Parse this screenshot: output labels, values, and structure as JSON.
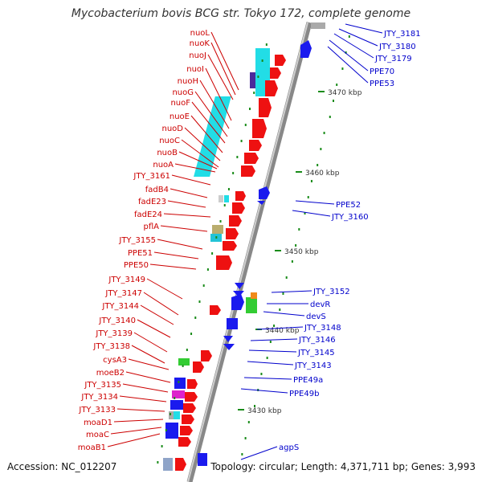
{
  "title": "Mycobacterium bovis BCG str. Tokyo 172, complete genome",
  "footer": {
    "accession": "Accession: NC_012207",
    "stats": "Topology: circular; Length: 4,371,711 bp; Genes: 3,993"
  },
  "colors": {
    "left_labels": "#cc0000",
    "right_labels": "#0000cc",
    "ticks": "#1a8c1a",
    "axis": "#8a8a8a",
    "red_gene": "#ee1111",
    "blue_gene": "#1a1aee",
    "cyan_gene": "#22dde6"
  },
  "scale_labels": [
    "3470 kbp",
    "3460 kbp",
    "3450 kbp",
    "3440 kbp",
    "3430 kbp"
  ],
  "left_genes": [
    "nuoL",
    "nuoK",
    "nuoJ",
    "nuoI",
    "nuoH",
    "nuoG",
    "nuoF",
    "nuoE",
    "nuoD",
    "nuoC",
    "nuoB",
    "nuoA",
    "JTY_3161",
    "fadB4",
    "fadE23",
    "fadE24",
    "pflA",
    "JTY_3155",
    "PPE51",
    "PPE50",
    "JTY_3149",
    "JTY_3147",
    "JTY_3144",
    "JTY_3140",
    "JTY_3139",
    "JTY_3138",
    "cysA3",
    "moeB2",
    "JTY_3135",
    "JTY_3134",
    "JTY_3133",
    "moaD1",
    "moaC",
    "moaB1"
  ],
  "right_genes": [
    "JTY_3181",
    "JTY_3180",
    "JTY_3179",
    "PPE70",
    "PPE53",
    "PPE52",
    "JTY_3160",
    "JTY_3152",
    "devR",
    "devS",
    "JTY_3148",
    "JTY_3146",
    "JTY_3145",
    "JTY_3143",
    "PPE49a",
    "PPE49b",
    "agpS"
  ]
}
